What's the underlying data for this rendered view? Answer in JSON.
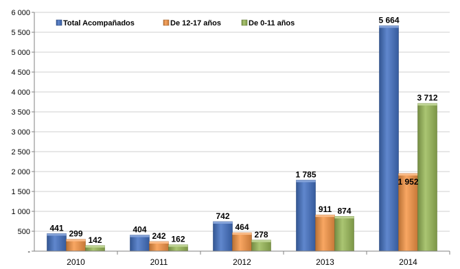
{
  "chart_data": {
    "type": "bar",
    "categories": [
      "2010",
      "2011",
      "2012",
      "2013",
      "2014"
    ],
    "series": [
      {
        "name": "Total Acompañados",
        "color": "#4472C4",
        "values": [
          441,
          404,
          742,
          1785,
          5664
        ],
        "labels": [
          "441",
          "404",
          "742",
          "1 785",
          "5 664"
        ]
      },
      {
        "name": "De 12-17 años",
        "color": "#F79646",
        "values": [
          299,
          242,
          464,
          911,
          1952
        ],
        "labels": [
          "299",
          "242",
          "464",
          "911",
          "1 952"
        ]
      },
      {
        "name": "De 0-11 años",
        "color": "#9BBB59",
        "values": [
          142,
          162,
          278,
          874,
          3712
        ],
        "labels": [
          "142",
          "162",
          "278",
          "874",
          "3 712"
        ]
      }
    ],
    "ylim": [
      0,
      6000
    ],
    "yticks": [
      0,
      500,
      1000,
      1500,
      2000,
      2500,
      3000,
      3500,
      4000,
      4500,
      5000,
      5500,
      6000
    ],
    "ytick_labels": [
      "-",
      "500",
      "1 000",
      "1 500",
      "2 000",
      "2 500",
      "3 000",
      "3 500",
      "4 000",
      "4 500",
      "5 000",
      "5 500",
      "6 000"
    ],
    "grid": true,
    "legend_position": "top-left"
  }
}
